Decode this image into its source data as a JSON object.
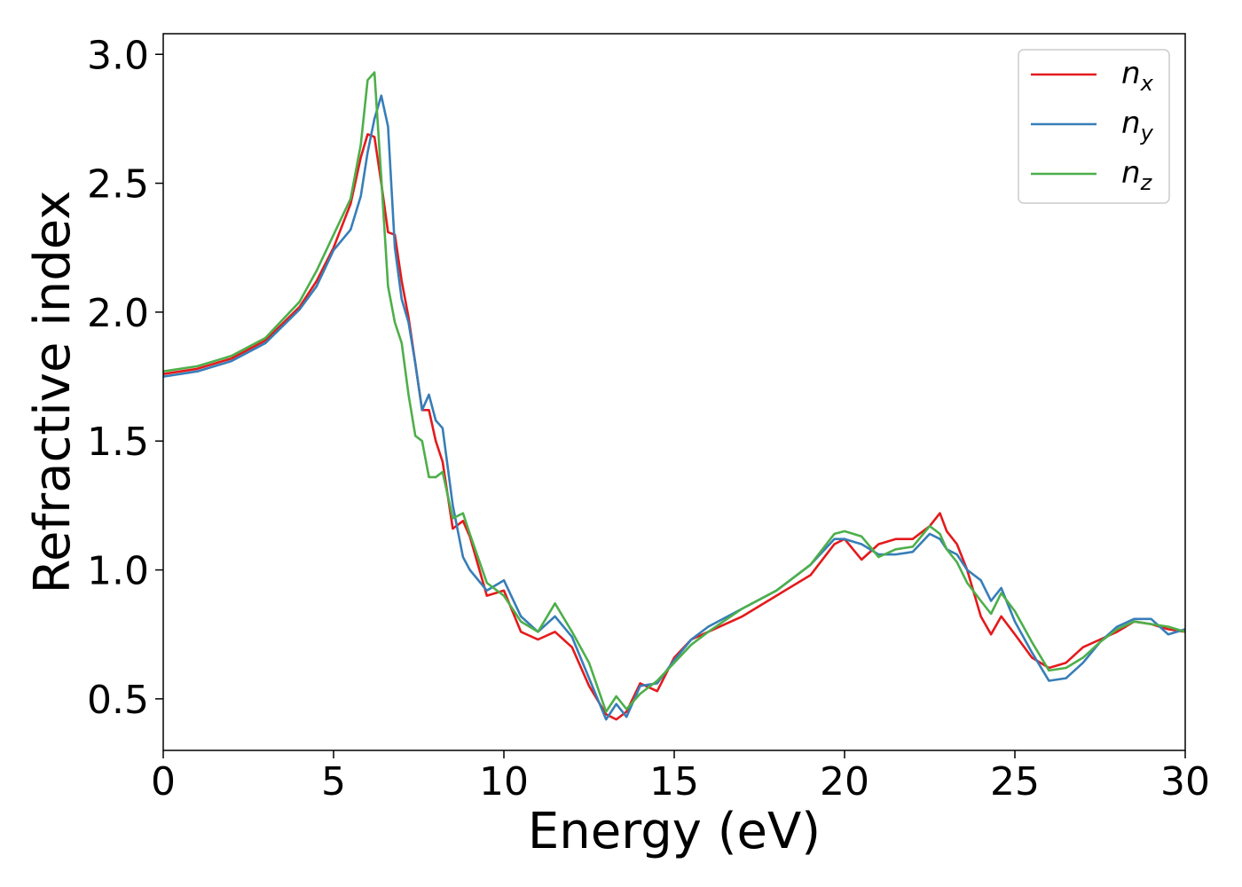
{
  "chart_data": {
    "type": "line",
    "title": "",
    "xlabel": "Energy (eV)",
    "ylabel": "Refractive index",
    "xlim": [
      0,
      30
    ],
    "ylim": [
      0.3,
      3.08
    ],
    "xticks": [
      0,
      5,
      10,
      15,
      20,
      25,
      30
    ],
    "xtick_labels": [
      "0",
      "5",
      "10",
      "15",
      "20",
      "25",
      "30"
    ],
    "yticks": [
      0.5,
      1.0,
      1.5,
      2.0,
      2.5,
      3.0
    ],
    "ytick_labels": [
      "0.5",
      "1.0",
      "1.5",
      "2.0",
      "2.5",
      "3.0"
    ],
    "grid": false,
    "legend_position": "top-right",
    "series": [
      {
        "name": "n_x",
        "legend_base": "n",
        "legend_sub": "x",
        "color": "#e41a1c",
        "x": [
          0,
          1,
          2,
          3,
          4,
          4.5,
          5,
          5.5,
          5.8,
          6.0,
          6.2,
          6.4,
          6.6,
          6.8,
          7.0,
          7.2,
          7.4,
          7.6,
          7.8,
          8.0,
          8.2,
          8.5,
          8.8,
          9.0,
          9.5,
          10.0,
          10.5,
          11.0,
          11.5,
          12.0,
          12.5,
          13.0,
          13.3,
          13.6,
          14.0,
          14.5,
          15.0,
          15.5,
          16.0,
          17.0,
          18.0,
          19.0,
          19.7,
          20.0,
          20.5,
          21.0,
          21.5,
          22.0,
          22.5,
          22.8,
          23.0,
          23.3,
          23.6,
          24.0,
          24.3,
          24.6,
          25.0,
          25.5,
          26.0,
          26.5,
          27.0,
          27.5,
          28.0,
          28.5,
          29.0,
          29.5,
          30.0
        ],
        "y": [
          1.76,
          1.78,
          1.82,
          1.89,
          2.02,
          2.12,
          2.25,
          2.42,
          2.6,
          2.69,
          2.68,
          2.5,
          2.31,
          2.3,
          2.12,
          1.98,
          1.8,
          1.62,
          1.62,
          1.5,
          1.42,
          1.16,
          1.19,
          1.13,
          0.9,
          0.92,
          0.76,
          0.73,
          0.76,
          0.7,
          0.55,
          0.44,
          0.42,
          0.45,
          0.56,
          0.53,
          0.66,
          0.73,
          0.76,
          0.82,
          0.9,
          0.98,
          1.1,
          1.12,
          1.04,
          1.1,
          1.12,
          1.12,
          1.17,
          1.22,
          1.15,
          1.1,
          1.0,
          0.82,
          0.75,
          0.82,
          0.75,
          0.66,
          0.62,
          0.64,
          0.7,
          0.73,
          0.76,
          0.8,
          0.79,
          0.77,
          0.76
        ]
      },
      {
        "name": "n_y",
        "legend_base": "n",
        "legend_sub": "y",
        "color": "#377eb8",
        "x": [
          0,
          1,
          2,
          3,
          4,
          4.5,
          5,
          5.5,
          5.8,
          6.0,
          6.2,
          6.4,
          6.6,
          6.8,
          7.0,
          7.2,
          7.4,
          7.6,
          7.8,
          8.0,
          8.2,
          8.5,
          8.8,
          9.0,
          9.5,
          10.0,
          10.5,
          11.0,
          11.5,
          12.0,
          12.5,
          13.0,
          13.3,
          13.6,
          14.0,
          14.5,
          15.0,
          15.5,
          16.0,
          17.0,
          18.0,
          19.0,
          19.7,
          20.0,
          20.5,
          21.0,
          21.5,
          22.0,
          22.5,
          22.8,
          23.0,
          23.3,
          23.6,
          24.0,
          24.3,
          24.6,
          25.0,
          25.5,
          26.0,
          26.5,
          27.0,
          27.5,
          28.0,
          28.5,
          29.0,
          29.5,
          30.0
        ],
        "y": [
          1.75,
          1.77,
          1.81,
          1.88,
          2.01,
          2.1,
          2.24,
          2.32,
          2.45,
          2.62,
          2.75,
          2.84,
          2.72,
          2.25,
          2.05,
          1.96,
          1.8,
          1.62,
          1.68,
          1.58,
          1.55,
          1.25,
          1.05,
          1.0,
          0.92,
          0.96,
          0.82,
          0.76,
          0.82,
          0.74,
          0.58,
          0.42,
          0.48,
          0.43,
          0.55,
          0.56,
          0.65,
          0.73,
          0.78,
          0.85,
          0.92,
          1.02,
          1.12,
          1.12,
          1.1,
          1.06,
          1.06,
          1.07,
          1.14,
          1.12,
          1.08,
          1.06,
          1.0,
          0.96,
          0.88,
          0.93,
          0.8,
          0.68,
          0.57,
          0.58,
          0.64,
          0.72,
          0.78,
          0.81,
          0.81,
          0.75,
          0.77
        ]
      },
      {
        "name": "n_z",
        "legend_base": "n",
        "legend_sub": "z",
        "color": "#4daf4a",
        "x": [
          0,
          1,
          2,
          3,
          4,
          4.5,
          5,
          5.5,
          5.8,
          6.0,
          6.2,
          6.4,
          6.6,
          6.8,
          7.0,
          7.2,
          7.4,
          7.6,
          7.8,
          8.0,
          8.2,
          8.5,
          8.8,
          9.0,
          9.5,
          10.0,
          10.5,
          11.0,
          11.5,
          12.0,
          12.5,
          13.0,
          13.3,
          13.6,
          14.0,
          14.5,
          15.0,
          15.5,
          16.0,
          17.0,
          18.0,
          19.0,
          19.7,
          20.0,
          20.5,
          21.0,
          21.5,
          22.0,
          22.5,
          22.8,
          23.0,
          23.3,
          23.6,
          24.0,
          24.3,
          24.6,
          25.0,
          25.5,
          26.0,
          26.5,
          27.0,
          27.5,
          28.0,
          28.5,
          29.0,
          29.5,
          30.0
        ],
        "y": [
          1.77,
          1.79,
          1.83,
          1.9,
          2.04,
          2.16,
          2.3,
          2.44,
          2.65,
          2.9,
          2.93,
          2.52,
          2.1,
          1.96,
          1.88,
          1.68,
          1.52,
          1.5,
          1.36,
          1.36,
          1.38,
          1.2,
          1.22,
          1.14,
          0.95,
          0.9,
          0.8,
          0.76,
          0.87,
          0.76,
          0.64,
          0.45,
          0.51,
          0.46,
          0.52,
          0.57,
          0.64,
          0.71,
          0.76,
          0.85,
          0.92,
          1.02,
          1.14,
          1.15,
          1.13,
          1.05,
          1.08,
          1.09,
          1.17,
          1.14,
          1.08,
          1.03,
          0.95,
          0.88,
          0.83,
          0.91,
          0.84,
          0.72,
          0.61,
          0.62,
          0.66,
          0.72,
          0.77,
          0.8,
          0.79,
          0.78,
          0.76
        ]
      }
    ]
  }
}
